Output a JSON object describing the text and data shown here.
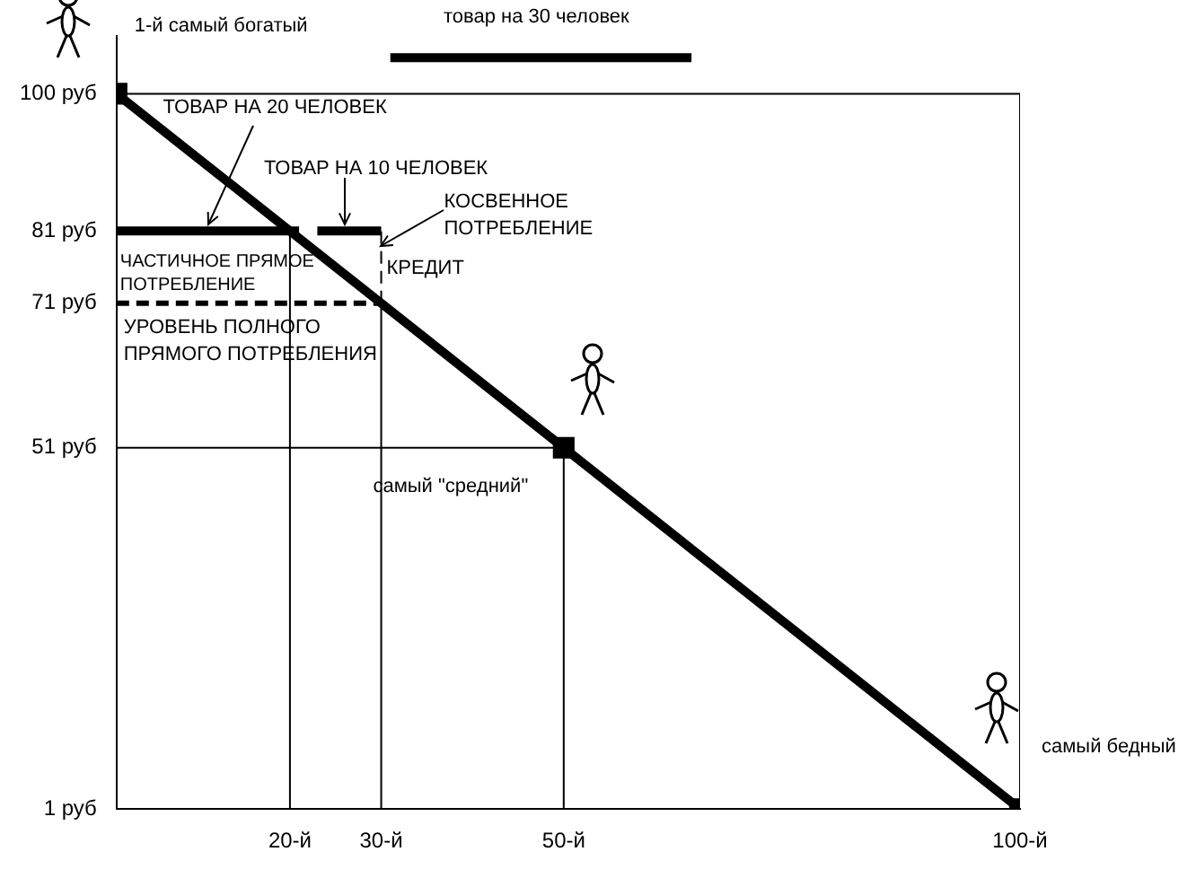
{
  "chart_data": {
    "type": "line",
    "xlim": [
      1,
      100
    ],
    "xticks": [
      {
        "value": 20,
        "label": "20-й"
      },
      {
        "value": 30,
        "label": "30-й"
      },
      {
        "value": 50,
        "label": "50-й"
      },
      {
        "value": 100,
        "label": "100-й"
      }
    ],
    "ylim": [
      1,
      108
    ],
    "yticks": [
      {
        "value": 1,
        "label": "1 руб"
      },
      {
        "value": 51,
        "label": "51 руб"
      },
      {
        "value": 71,
        "label": "71 руб"
      },
      {
        "value": 81,
        "label": "81 руб"
      },
      {
        "value": 100,
        "label": "100 руб"
      }
    ],
    "grid": false,
    "legend": false,
    "ref_lines": [
      {
        "axis": "y",
        "value": 100,
        "color": "#000000"
      }
    ],
    "series": [
      {
        "color": "#000000",
        "x": [
          1,
          50,
          100
        ],
        "values": [
          100,
          51,
          1
        ],
        "marker": "square",
        "line_style": "solid"
      },
      {
        "color": "#000000",
        "x": [
          1,
          21
        ],
        "values": [
          81,
          81
        ],
        "line_style": "solid"
      },
      {
        "color": "#000000",
        "x": [
          23,
          30
        ],
        "values": [
          81,
          81
        ],
        "line_style": "solid"
      },
      {
        "color": "#000000",
        "x": [
          31,
          64
        ],
        "values": [
          105,
          105
        ],
        "line_style": "solid"
      },
      {
        "color": "#000000",
        "x": [
          1,
          30
        ],
        "values": [
          71,
          71
        ],
        "line_style": "dashed"
      },
      {
        "color": "#000000",
        "x": [
          20,
          20
        ],
        "values": [
          1,
          81
        ],
        "line_style": "solid"
      },
      {
        "color": "#000000",
        "x": [
          30,
          30
        ],
        "values": [
          1,
          71
        ],
        "line_style": "solid"
      },
      {
        "color": "#000000",
        "x": [
          30,
          30
        ],
        "values": [
          71,
          81
        ],
        "line_style": "dashed"
      },
      {
        "color": "#000000",
        "x": [
          50,
          50
        ],
        "values": [
          1,
          51
        ],
        "line_style": "solid"
      },
      {
        "color": "#000000",
        "x": [
          1,
          50
        ],
        "values": [
          51,
          51
        ],
        "line_style": "solid"
      },
      {
        "color": "#000000",
        "x": [
          100,
          100
        ],
        "values": [
          1,
          100
        ],
        "line_style": "solid"
      }
    ],
    "annotations": [
      {
        "text": "1-й самый богатый",
        "x": 1,
        "y": 100
      },
      {
        "text": "товар на 30 человек",
        "x": 47,
        "y": 105
      },
      {
        "text": "ТОВАР НА 20 ЧЕЛОВЕК",
        "x": 11,
        "y": 81
      },
      {
        "text": "ТОВАР НА 10 ЧЕЛОВЕК",
        "x": 26,
        "y": 81
      },
      {
        "text": "КОСВЕННОЕ\nПОТРЕБЛЕНИЕ",
        "x": 30,
        "y": 78
      },
      {
        "text": "ЧАСТИЧНОЕ ПРЯМОЕ\nПОТРЕБЛЕНИЕ",
        "x": 1,
        "y": 81
      },
      {
        "text": "КРЕДИТ",
        "x": 30,
        "y": 76
      },
      {
        "text": "УРОВЕНЬ ПОЛНОГО\nПРЯМОГО ПОТРЕБЛЕНИЯ",
        "x": 1,
        "y": 71
      },
      {
        "text": "самый \"средний\"",
        "x": 50,
        "y": 51
      },
      "самый бедный"
    ]
  }
}
